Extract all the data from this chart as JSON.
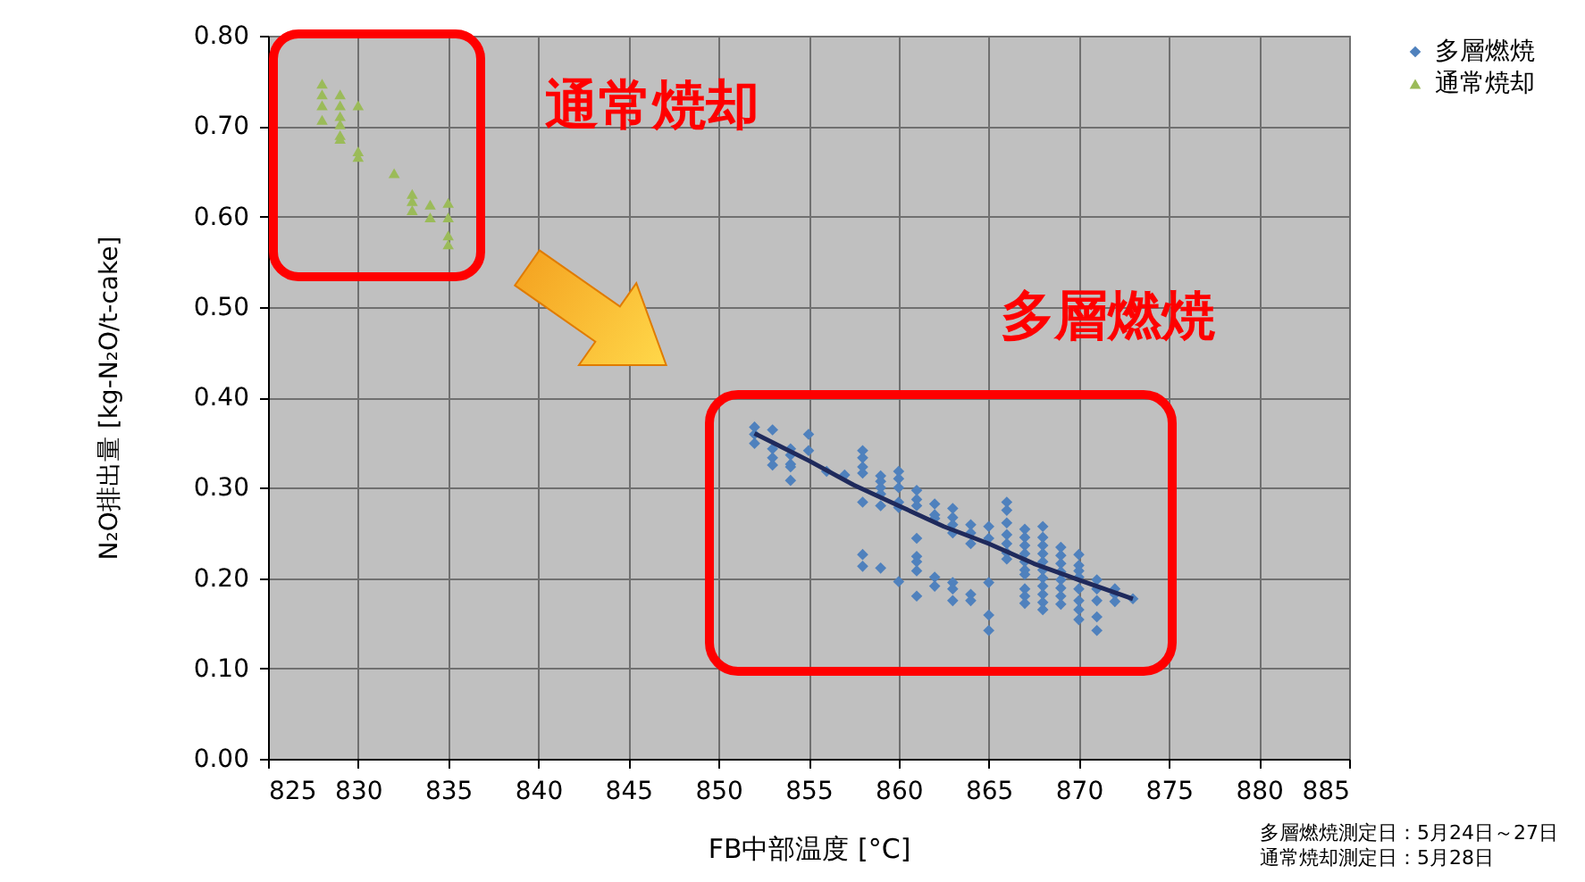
{
  "chart_data": {
    "type": "scatter",
    "xlabel": "FB中部温度 [°C]",
    "ylabel": "N₂O排出量 [kg-N₂O/t-cake]",
    "xlim": [
      825,
      885
    ],
    "xticks": [
      825,
      830,
      835,
      840,
      845,
      850,
      855,
      860,
      865,
      870,
      875,
      880,
      885
    ],
    "ylim": [
      0,
      0.8
    ],
    "yticks": [
      {
        "value": 0,
        "label": "0.00"
      },
      {
        "value": 0.1,
        "label": "0.10"
      },
      {
        "value": 0.2,
        "label": "0.20"
      },
      {
        "value": 0.3,
        "label": "0.30"
      },
      {
        "value": 0.4,
        "label": "0.40"
      },
      {
        "value": 0.5,
        "label": "0.50"
      },
      {
        "value": 0.6,
        "label": "0.60"
      },
      {
        "value": 0.7,
        "label": "0.70"
      },
      {
        "value": 0.8,
        "label": "0.80"
      }
    ],
    "grid": true,
    "legend": "top right",
    "series": [
      {
        "name": "多層燃焼",
        "marker": "diamond",
        "color": "#4f81bd",
        "x": [
          852,
          852,
          852,
          853,
          853,
          853,
          853,
          854,
          854,
          854,
          854,
          854,
          855,
          855,
          856,
          857,
          858,
          858,
          858,
          858,
          858,
          858,
          858,
          859,
          859,
          859,
          859,
          859,
          859,
          860,
          860,
          860,
          860,
          860,
          860,
          861,
          861,
          861,
          861,
          861,
          861,
          861,
          861,
          862,
          862,
          862,
          862,
          862,
          863,
          863,
          863,
          863,
          863,
          863,
          863,
          864,
          864,
          864,
          864,
          864,
          865,
          865,
          865,
          865,
          865,
          866,
          866,
          866,
          866,
          866,
          866,
          866,
          867,
          867,
          867,
          867,
          867,
          867,
          867,
          867,
          867,
          867,
          868,
          868,
          868,
          868,
          868,
          868,
          868,
          868,
          868,
          868,
          868,
          869,
          869,
          869,
          869,
          869,
          869,
          869,
          869,
          870,
          870,
          870,
          870,
          870,
          870,
          870,
          870,
          871,
          871,
          871,
          871,
          871,
          872,
          872,
          872,
          873
        ],
        "values": [
          0.367,
          0.359,
          0.349,
          0.364,
          0.343,
          0.333,
          0.325,
          0.343,
          0.336,
          0.326,
          0.323,
          0.308,
          0.359,
          0.341,
          0.318,
          0.314,
          0.341,
          0.333,
          0.323,
          0.316,
          0.284,
          0.226,
          0.213,
          0.313,
          0.307,
          0.3,
          0.293,
          0.28,
          0.211,
          0.318,
          0.31,
          0.3,
          0.284,
          0.278,
          0.196,
          0.297,
          0.287,
          0.28,
          0.244,
          0.224,
          0.218,
          0.208,
          0.18,
          0.282,
          0.27,
          0.266,
          0.201,
          0.191,
          0.277,
          0.267,
          0.259,
          0.25,
          0.195,
          0.188,
          0.175,
          0.259,
          0.25,
          0.238,
          0.182,
          0.175,
          0.257,
          0.244,
          0.195,
          0.159,
          0.142,
          0.284,
          0.275,
          0.261,
          0.248,
          0.238,
          0.228,
          0.221,
          0.254,
          0.245,
          0.236,
          0.227,
          0.218,
          0.209,
          0.204,
          0.188,
          0.18,
          0.172,
          0.257,
          0.245,
          0.236,
          0.227,
          0.218,
          0.209,
          0.2,
          0.191,
          0.182,
          0.173,
          0.165,
          0.234,
          0.225,
          0.216,
          0.207,
          0.198,
          0.189,
          0.18,
          0.171,
          0.226,
          0.214,
          0.208,
          0.201,
          0.188,
          0.175,
          0.165,
          0.154,
          0.198,
          0.188,
          0.175,
          0.157,
          0.142,
          0.188,
          0.182,
          0.174,
          0.177
        ]
      },
      {
        "name": "通常焼却",
        "marker": "triangle",
        "color": "#9bbb59",
        "x": [
          828,
          828,
          828,
          828,
          829,
          829,
          829,
          829,
          829,
          829,
          830,
          830,
          830,
          832,
          833,
          833,
          833,
          834,
          834,
          835,
          835,
          835,
          835
        ],
        "values": [
          0.747,
          0.735,
          0.723,
          0.707,
          0.735,
          0.723,
          0.711,
          0.702,
          0.69,
          0.686,
          0.723,
          0.672,
          0.666,
          0.648,
          0.625,
          0.617,
          0.607,
          0.613,
          0.599,
          0.615,
          0.599,
          0.579,
          0.569
        ]
      },
      {
        "type": "line",
        "color": "#1f2a5c",
        "x": [
          852,
          855,
          857.5,
          860,
          862.5,
          865,
          867.5,
          870,
          873
        ],
        "values": [
          0.36,
          0.33,
          0.303,
          0.28,
          0.257,
          0.238,
          0.216,
          0.198,
          0.177
        ]
      }
    ],
    "annotations": [
      "通常焼却",
      "多層燃焼",
      "多層燃焼測定日：5月24日～27日",
      "通常焼却測定日：5月28日"
    ]
  }
}
